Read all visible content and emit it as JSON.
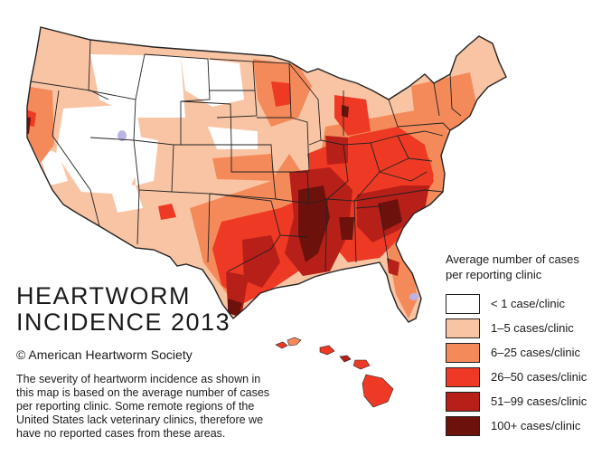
{
  "title": {
    "line1": "HEARTWORM",
    "line2": "INCIDENCE 2013"
  },
  "copyright": "© American Heartworm Society",
  "description": [
    "The severity of heartworm incidence as shown in",
    "this map is based on the average number of cases",
    "per reporting clinic. Some remote regions of the",
    "United States lack veterinary clinics, therefore we",
    "have no reported cases from these areas."
  ],
  "legend": {
    "title_line1": "Average number of cases",
    "title_line2": "per reporting clinic",
    "items": [
      {
        "label": "< 1 case/clinic",
        "color": "#ffffff"
      },
      {
        "label": "1–5 cases/clinic",
        "color": "#f9c4a4"
      },
      {
        "label": "6–25 cases/clinic",
        "color": "#f48a5a"
      },
      {
        "label": "26–50 cases/clinic",
        "color": "#ee3a24"
      },
      {
        "label": "51–99 cases/clinic",
        "color": "#b71f19"
      },
      {
        "label": "100+ cases/clinic",
        "color": "#6d110c"
      }
    ]
  },
  "colors": {
    "none": "#ffffff",
    "low": "#f9c4a4",
    "moderate": "#f48a5a",
    "high": "#ee3a24",
    "very_high": "#b71f19",
    "extreme": "#6d110c",
    "water": "#b9b4e8",
    "border": "#222222"
  }
}
